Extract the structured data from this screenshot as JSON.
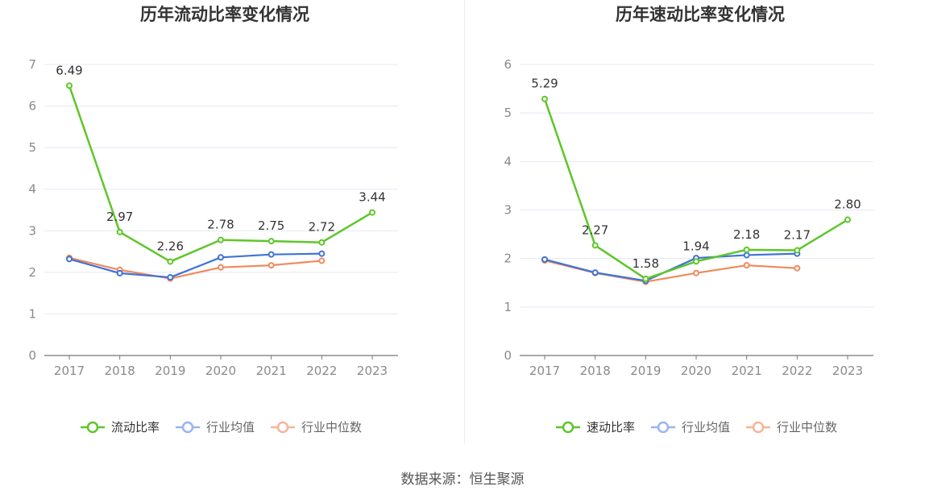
{
  "colors": {
    "main": "#5ec62a",
    "avg": "#3f73d6",
    "median": "#f08a5d",
    "grid": "#e4e8f4",
    "axis": "#777777",
    "legend_avg_icon": "#9ab5ee",
    "legend_median_icon": "#f5b59a"
  },
  "source": "数据来源：恒生聚源",
  "chart_data": [
    {
      "type": "line",
      "title": "历年流动比率变化情况",
      "categories": [
        "2017",
        "2018",
        "2019",
        "2020",
        "2021",
        "2022",
        "2023"
      ],
      "y_ticks": [
        "0",
        "1",
        "2",
        "3",
        "4",
        "5",
        "6",
        "7"
      ],
      "ylim": [
        0,
        7
      ],
      "grid": true,
      "legend_position": "bottom",
      "series": [
        {
          "name": "流动比率",
          "color": "#5ec62a",
          "values": [
            6.49,
            2.97,
            2.26,
            2.78,
            2.75,
            2.72,
            3.44
          ],
          "labels": [
            "6.49",
            "2.97",
            "2.26",
            "2.78",
            "2.75",
            "2.72",
            "3.44"
          ]
        },
        {
          "name": "行业均值",
          "color": "#3f73d6",
          "values": [
            2.32,
            1.98,
            1.88,
            2.36,
            2.43,
            2.45,
            null
          ]
        },
        {
          "name": "行业中位数",
          "color": "#f08a5d",
          "values": [
            2.35,
            2.06,
            1.85,
            2.12,
            2.17,
            2.28,
            null
          ]
        }
      ]
    },
    {
      "type": "line",
      "title": "历年速动比率变化情况",
      "categories": [
        "2017",
        "2018",
        "2019",
        "2020",
        "2021",
        "2022",
        "2023"
      ],
      "y_ticks": [
        "0",
        "1",
        "2",
        "3",
        "4",
        "5",
        "6"
      ],
      "ylim": [
        0,
        6
      ],
      "grid": true,
      "legend_position": "bottom",
      "series": [
        {
          "name": "速动比率",
          "color": "#5ec62a",
          "values": [
            5.29,
            2.27,
            1.58,
            1.94,
            2.18,
            2.17,
            2.8
          ],
          "labels": [
            "5.29",
            "2.27",
            "1.58",
            "1.94",
            "2.18",
            "2.17",
            "2.80"
          ]
        },
        {
          "name": "行业均值",
          "color": "#3f73d6",
          "values": [
            1.98,
            1.71,
            1.54,
            2.01,
            2.07,
            2.1,
            null
          ]
        },
        {
          "name": "行业中位数",
          "color": "#f08a5d",
          "values": [
            1.96,
            1.7,
            1.52,
            1.7,
            1.86,
            1.8,
            null
          ]
        }
      ]
    }
  ]
}
